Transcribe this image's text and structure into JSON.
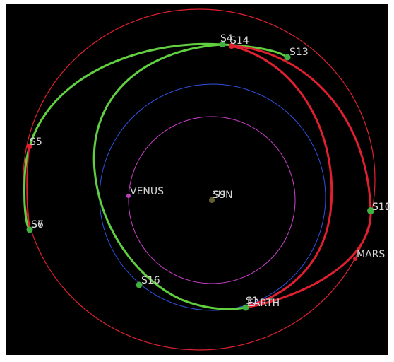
{
  "bodies": [
    {
      "label": "S4"
    },
    {
      "label": "S14"
    },
    {
      "label": "S13"
    },
    {
      "label": "S5"
    },
    {
      "label": "VENUS"
    },
    {
      "label": "SUN"
    },
    {
      "label": "S9"
    },
    {
      "label": "S7"
    },
    {
      "label": "S6"
    },
    {
      "label": "S16"
    },
    {
      "label": "S10"
    },
    {
      "label": "S11"
    },
    {
      "label": "MARS"
    },
    {
      "label": "EARTH"
    },
    {
      "label": "S1"
    }
  ]
}
